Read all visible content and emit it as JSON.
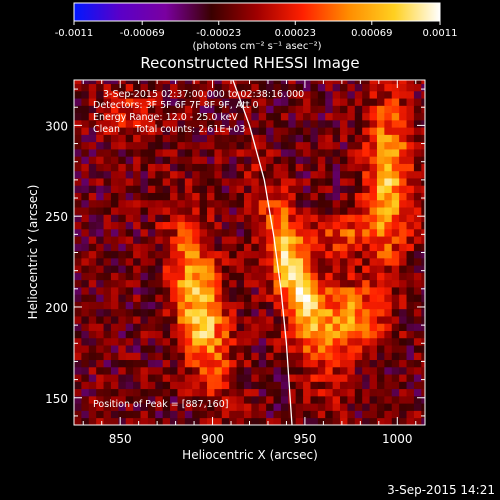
{
  "colorbar": {
    "ticks": [
      "-0.0011",
      "-0.00069",
      "-0.00023",
      "0.00023",
      "0.00069",
      "0.0011"
    ],
    "tick_values": [
      -0.0011,
      -0.00069,
      -0.00023,
      0.00023,
      0.00069,
      0.0011
    ],
    "range": [
      -0.0011,
      0.0011
    ],
    "units": "(photons cm⁻² s⁻¹ asec⁻²)",
    "stops": [
      "#0018ff",
      "#5a00c8",
      "#7a00a0",
      "#3a0000",
      "#a00000",
      "#ff2000",
      "#ff8c00",
      "#ffd020",
      "#ffffff"
    ]
  },
  "chart_data": {
    "type": "heatmap",
    "title": "Reconstructed RHESSI Image",
    "xlabel": "Heliocentric X (arcsec)",
    "ylabel": "Heliocentric Y (arcsec)",
    "xlim": [
      825,
      1015
    ],
    "ylim": [
      135,
      325
    ],
    "xticks": [
      850,
      900,
      950,
      1000
    ],
    "yticks": [
      150,
      200,
      250,
      300
    ],
    "annotations": [
      "3-Sep-2015 02:37:00.000 to 02:38:16.000",
      "Detectors: 3F 5F 6F 7F 8F 9F, Att 0",
      "Energy Range: 12.0 - 25.0 keV",
      "Clean     Total counts: 2.61E+03"
    ],
    "peak_label": "Position of Peak = [887,160]",
    "peak": [
      887,
      160
    ],
    "limb_curve": [
      [
        911,
        325
      ],
      [
        920,
        300
      ],
      [
        928,
        270
      ],
      [
        933,
        240
      ],
      [
        937,
        210
      ],
      [
        940,
        180
      ],
      [
        942,
        150
      ],
      [
        943,
        135
      ]
    ],
    "sources": [
      {
        "x": 895,
        "y": 200,
        "amplitude": 0.001
      },
      {
        "x": 945,
        "y": 220,
        "amplitude": 0.0011
      },
      {
        "x": 995,
        "y": 275,
        "amplitude": 0.0009
      }
    ]
  },
  "footer": {
    "timestamp": "3-Sep-2015 14:21"
  }
}
